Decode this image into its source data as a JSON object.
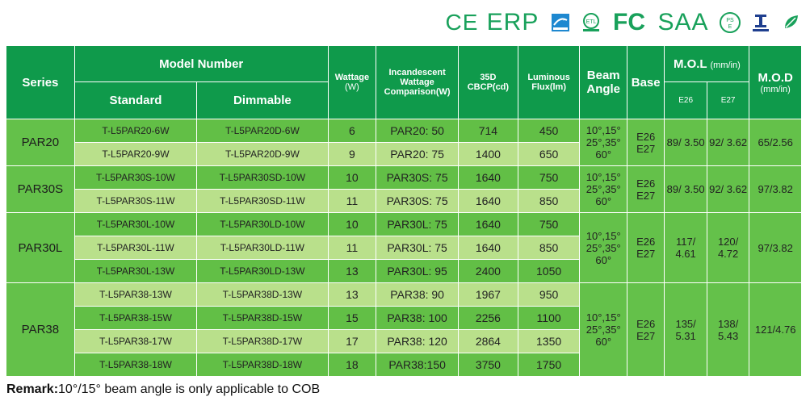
{
  "certifications": {
    "ce": "CE",
    "erp": "ERP",
    "fc": "FC",
    "saa": "SAA",
    "small_icons": [
      "energy-star-icon",
      "etl-icon",
      "pse-icon",
      "inmetro-icon",
      "rohs-icon"
    ]
  },
  "header": {
    "series": "Series",
    "model_number": "Model Number",
    "standard": "Standard",
    "dimmable": "Dimmable",
    "wattage": "Wattage",
    "wattage_unit": "(W)",
    "incandescent": "Incandescent Wattage Comparison(W)",
    "cbcp": "35D CBCP(cd)",
    "luminous": "Luminous Flux(lm)",
    "beam_angle": "Beam Angle",
    "base": "Base",
    "mol": "M.O.L",
    "mol_unit": "(mm/in)",
    "e26": "E26",
    "e27": "E27",
    "mod": "M.O.D",
    "mod_unit": "(mm/in)"
  },
  "groups": [
    {
      "series": "PAR20",
      "beam": "10°,15° 25°,35° 60°",
      "base": "E26 E27",
      "mol_e26": "89/ 3.50",
      "mol_e27": "92/ 3.62",
      "mod": "65/2.56",
      "rows": [
        {
          "standard": "T-L5PAR20-6W",
          "dimmable": "T-L5PAR20D-6W",
          "wattage": "6",
          "comparison": "PAR20: 50",
          "cbcp": "714",
          "flux": "450"
        },
        {
          "standard": "T-L5PAR20-9W",
          "dimmable": "T-L5PAR20D-9W",
          "wattage": "9",
          "comparison": "PAR20: 75",
          "cbcp": "1400",
          "flux": "650"
        }
      ]
    },
    {
      "series": "PAR30S",
      "beam": "10°,15° 25°,35° 60°",
      "base": "E26 E27",
      "mol_e26": "89/ 3.50",
      "mol_e27": "92/ 3.62",
      "mod": "97/3.82",
      "rows": [
        {
          "standard": "T-L5PAR30S-10W",
          "dimmable": "T-L5PAR30SD-10W",
          "wattage": "10",
          "comparison": "PAR30S: 75",
          "cbcp": "1640",
          "flux": "750"
        },
        {
          "standard": "T-L5PAR30S-11W",
          "dimmable": "T-L5PAR30SD-11W",
          "wattage": "11",
          "comparison": "PAR30S: 75",
          "cbcp": "1640",
          "flux": "850"
        }
      ]
    },
    {
      "series": "PAR30L",
      "beam": "10°,15° 25°,35° 60°",
      "base": "E26 E27",
      "mol_e26": "117/ 4.61",
      "mol_e27": "120/ 4.72",
      "mod": "97/3.82",
      "rows": [
        {
          "standard": "T-L5PAR30L-10W",
          "dimmable": "T-L5PAR30LD-10W",
          "wattage": "10",
          "comparison": "PAR30L: 75",
          "cbcp": "1640",
          "flux": "750"
        },
        {
          "standard": "T-L5PAR30L-11W",
          "dimmable": "T-L5PAR30LD-11W",
          "wattage": "11",
          "comparison": "PAR30L: 75",
          "cbcp": "1640",
          "flux": "850"
        },
        {
          "standard": "T-L5PAR30L-13W",
          "dimmable": "T-L5PAR30LD-13W",
          "wattage": "13",
          "comparison": "PAR30L: 95",
          "cbcp": "2400",
          "flux": "1050"
        }
      ]
    },
    {
      "series": "PAR38",
      "beam": "10°,15° 25°,35° 60°",
      "base": "E26 E27",
      "mol_e26": "135/ 5.31",
      "mol_e27": "138/ 5.43",
      "mod": "121/4.76",
      "rows": [
        {
          "standard": "T-L5PAR38-13W",
          "dimmable": "T-L5PAR38D-13W",
          "wattage": "13",
          "comparison": "PAR38: 90",
          "cbcp": "1967",
          "flux": "950"
        },
        {
          "standard": "T-L5PAR38-15W",
          "dimmable": "T-L5PAR38D-15W",
          "wattage": "15",
          "comparison": "PAR38: 100",
          "cbcp": "2256",
          "flux": "1100"
        },
        {
          "standard": "T-L5PAR38-17W",
          "dimmable": "T-L5PAR38D-17W",
          "wattage": "17",
          "comparison": "PAR38: 120",
          "cbcp": "2864",
          "flux": "1350"
        },
        {
          "standard": "T-L5PAR38-18W",
          "dimmable": "T-L5PAR38D-18W",
          "wattage": "18",
          "comparison": "PAR38:150",
          "cbcp": "3750",
          "flux": "1750"
        }
      ]
    }
  ],
  "remark": {
    "label": "Remark:",
    "text": "10°/15° beam angle is only applicable to COB"
  },
  "colors": {
    "header": "#0f9a4b",
    "row_dark": "#62bf46",
    "row_light": "#b9e08b",
    "cert": "#19a15b"
  }
}
